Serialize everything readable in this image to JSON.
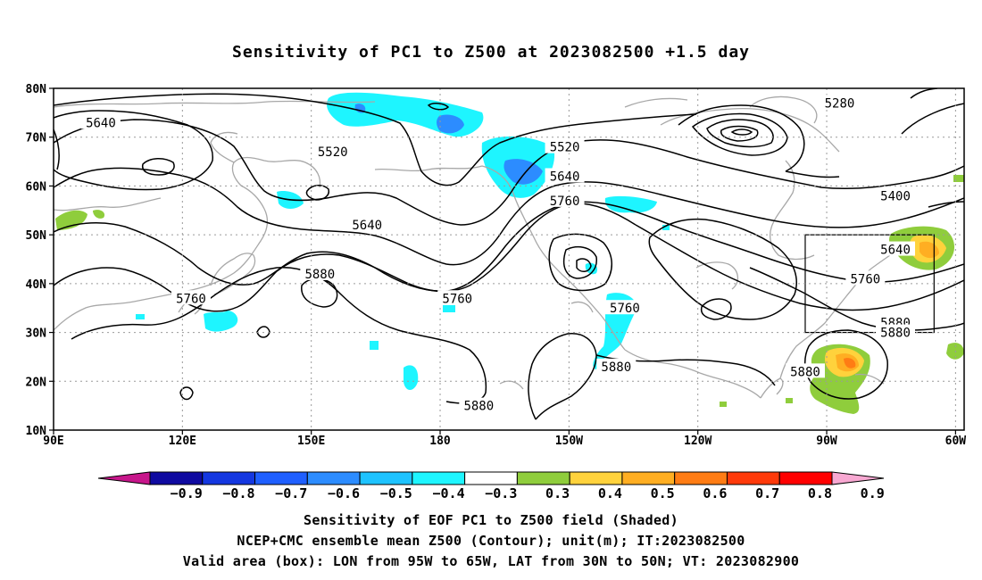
{
  "title": "Sensitivity of PC1 to Z500 at 2023082500 +1.5 day",
  "map": {
    "lat_labels": [
      "80N",
      "70N",
      "60N",
      "50N",
      "40N",
      "30N",
      "20N",
      "10N"
    ],
    "lon_labels": [
      "90E",
      "120E",
      "150E",
      "180",
      "150W",
      "120W",
      "90W",
      "60W"
    ],
    "contour_labels": [
      {
        "text": "5280",
        "lon": -87,
        "lat": 77
      },
      {
        "text": "5640",
        "lon": 101,
        "lat": 73
      },
      {
        "text": "5520",
        "lon": 155,
        "lat": 67
      },
      {
        "text": "5520",
        "lon": -151,
        "lat": 68
      },
      {
        "text": "5640",
        "lon": -151,
        "lat": 62
      },
      {
        "text": "5760",
        "lon": -151,
        "lat": 57
      },
      {
        "text": "5400",
        "lon": -74,
        "lat": 58
      },
      {
        "text": "5640",
        "lon": 163,
        "lat": 52
      },
      {
        "text": "5640",
        "lon": -74,
        "lat": 47
      },
      {
        "text": "5880",
        "lon": 152,
        "lat": 42
      },
      {
        "text": "5760",
        "lon": 122,
        "lat": 37
      },
      {
        "text": "5760",
        "lon": -176,
        "lat": 37
      },
      {
        "text": "5760",
        "lon": -137,
        "lat": 35
      },
      {
        "text": "5760",
        "lon": -81,
        "lat": 41
      },
      {
        "text": "5880",
        "lon": -74,
        "lat": 32
      },
      {
        "text": "5880",
        "lon": -74,
        "lat": 30
      },
      {
        "text": "5880",
        "lon": -139,
        "lat": 23
      },
      {
        "text": "5880",
        "lon": -95,
        "lat": 22
      },
      {
        "text": "5880",
        "lon": -171,
        "lat": 15
      }
    ],
    "valid_box": {
      "lon_from": -95,
      "lon_to": -65,
      "lat_from": 30,
      "lat_to": 50
    }
  },
  "colorbar": {
    "colors": [
      "#c7168b",
      "#0f0aa0",
      "#1437e0",
      "#1f5fff",
      "#2c8cff",
      "#1ec3ff",
      "#1ef5ff",
      "#ffffff",
      "#8fcd3c",
      "#ffd23c",
      "#ffae22",
      "#ff7c14",
      "#ff3a0a",
      "#ff0000",
      "#f8a8d2"
    ],
    "labels": [
      "−0.9",
      "−0.8",
      "−0.7",
      "−0.6",
      "−0.5",
      "−0.4",
      "−0.3",
      "0.3",
      "0.4",
      "0.5",
      "0.6",
      "0.7",
      "0.8",
      "0.9"
    ]
  },
  "caption": {
    "line1": "Sensitivity of EOF PC1 to Z500 field (Shaded)",
    "line2": "NCEP+CMC ensemble mean Z500 (Contour); unit(m); IT:2023082500",
    "line3": "Valid area (box): LON from 95W to 65W, LAT from 30N to 50N; VT: 2023082900"
  }
}
